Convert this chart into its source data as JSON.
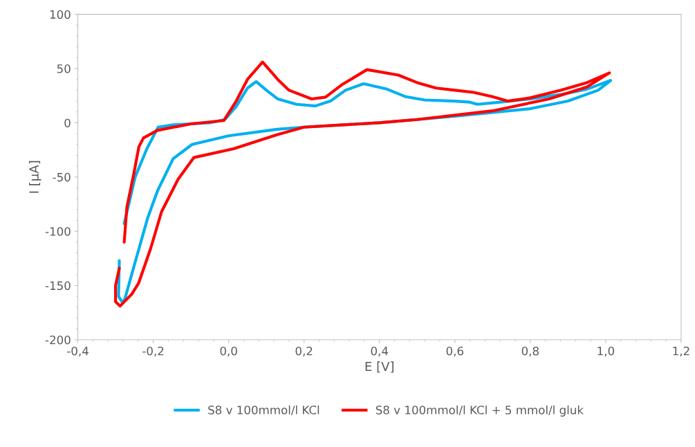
{
  "chart_data": {
    "type": "line",
    "xlabel": "E [V]",
    "ylabel": "I [µA]",
    "xlim": [
      -0.4,
      1.2
    ],
    "ylim": [
      -200,
      100
    ],
    "xticks": [
      {
        "value": -0.4,
        "label": "-0,4"
      },
      {
        "value": -0.2,
        "label": "-0,2"
      },
      {
        "value": 0.0,
        "label": "0,0"
      },
      {
        "value": 0.2,
        "label": "0,2"
      },
      {
        "value": 0.4,
        "label": "0,4"
      },
      {
        "value": 0.6,
        "label": "0,6"
      },
      {
        "value": 0.8,
        "label": "0,8"
      },
      {
        "value": 1.0,
        "label": "1,0"
      },
      {
        "value": 1.2,
        "label": "1,2"
      }
    ],
    "yticks": [
      -200,
      -150,
      -100,
      -50,
      0,
      50,
      100
    ],
    "grid": false,
    "legend": "bottom",
    "marker": "none",
    "line_style": "solid",
    "series": [
      {
        "name": "S8 v 100mmol/l KCl",
        "color": "#00b0f0",
        "x": [
          -0.277,
          -0.248,
          -0.217,
          -0.187,
          -0.15,
          -0.05,
          -0.01,
          0.02,
          0.05,
          0.073,
          0.1,
          0.13,
          0.18,
          0.23,
          0.27,
          0.31,
          0.358,
          0.42,
          0.47,
          0.52,
          0.6,
          0.64,
          0.66,
          0.72,
          0.8,
          0.88,
          0.95,
          1.013,
          0.98,
          0.9,
          0.8,
          0.6,
          0.4,
          0.2,
          0.128,
          0.0,
          -0.097,
          -0.147,
          -0.189,
          -0.215,
          -0.25,
          -0.275,
          -0.281,
          -0.292,
          -0.29
        ],
        "values": [
          -93,
          -50,
          -24,
          -4,
          -2,
          0,
          3,
          15,
          32,
          38,
          30,
          22,
          17,
          15.5,
          20,
          30,
          36,
          31,
          24,
          21,
          20,
          19,
          17,
          19,
          22,
          26,
          31,
          39,
          30,
          20,
          13,
          6,
          0,
          -4,
          -6,
          -12,
          -20,
          -33,
          -63,
          -88,
          -131,
          -162,
          -166,
          -160,
          -127
        ]
      },
      {
        "name": "S8 v 100mmol/l KCl + 5 mmol/l gluk",
        "color": "#ff0000",
        "x": [
          -0.277,
          -0.27,
          -0.251,
          -0.238,
          -0.226,
          -0.189,
          -0.1,
          -0.013,
          0.02,
          0.05,
          0.09,
          0.13,
          0.16,
          0.22,
          0.257,
          0.3,
          0.367,
          0.45,
          0.5,
          0.55,
          0.6,
          0.65,
          0.7,
          0.74,
          0.8,
          0.88,
          0.95,
          1.01,
          0.95,
          0.85,
          0.7,
          0.5,
          0.4,
          0.2,
          0.128,
          0.013,
          -0.092,
          -0.134,
          -0.178,
          -0.207,
          -0.239,
          -0.257,
          -0.288,
          -0.3,
          -0.3,
          -0.29
        ],
        "values": [
          -110,
          -78,
          -46,
          -22,
          -14,
          -7,
          -1,
          2,
          20,
          40,
          56,
          40,
          30,
          22,
          23.6,
          35,
          49,
          44,
          37,
          32,
          30,
          28,
          24,
          20,
          23,
          30,
          37,
          46,
          33,
          22,
          11,
          3,
          0,
          -4,
          -11,
          -24,
          -32,
          -52,
          -82,
          -116,
          -148,
          -158,
          -169,
          -165,
          -150,
          -134
        ]
      }
    ]
  }
}
